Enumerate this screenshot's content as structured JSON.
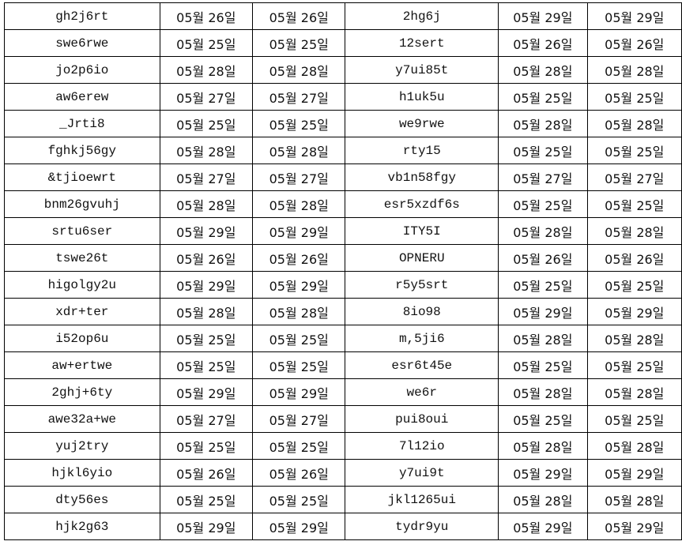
{
  "rows": [
    [
      "gh2j6rt",
      "05월 26일",
      "05월 26일",
      "2hg6j",
      "05월 29일",
      "05월 29일"
    ],
    [
      "swe6rwe",
      "05월 25일",
      "05월 25일",
      "12sert",
      "05월 26일",
      "05월 26일"
    ],
    [
      "jo2p6io",
      "05월 28일",
      "05월 28일",
      "y7ui85t",
      "05월 28일",
      "05월 28일"
    ],
    [
      "aw6erew",
      "05월 27일",
      "05월 27일",
      "h1uk5u",
      "05월 25일",
      "05월 25일"
    ],
    [
      "_Jrti8",
      "05월 25일",
      "05월 25일",
      "we9rwe",
      "05월 28일",
      "05월 28일"
    ],
    [
      "fghkj56gy",
      "05월 28일",
      "05월 28일",
      "rty15",
      "05월 25일",
      "05월 25일"
    ],
    [
      "&tjioewrt",
      "05월 27일",
      "05월 27일",
      "vb1n58fgy",
      "05월 27일",
      "05월 27일"
    ],
    [
      "bnm26gvuhj",
      "05월 28일",
      "05월 28일",
      "esr5xzdf6s",
      "05월 25일",
      "05월 25일"
    ],
    [
      "srtu6ser",
      "05월 29일",
      "05월 29일",
      "ITY5I",
      "05월 28일",
      "05월 28일"
    ],
    [
      "tswe26t",
      "05월 26일",
      "05월 26일",
      "OPNERU",
      "05월 26일",
      "05월 26일"
    ],
    [
      "higolgy2u",
      "05월 29일",
      "05월 29일",
      "r5y5srt",
      "05월 25일",
      "05월 25일"
    ],
    [
      "xdr+ter",
      "05월 28일",
      "05월 28일",
      "8io98",
      "05월 29일",
      "05월 29일"
    ],
    [
      "i52op6u",
      "05월 25일",
      "05월 25일",
      "m,5ji6",
      "05월 28일",
      "05월 28일"
    ],
    [
      "aw+ertwe",
      "05월 25일",
      "05월 25일",
      "esr6t45e",
      "05월 25일",
      "05월 25일"
    ],
    [
      "2ghj+6ty",
      "05월 29일",
      "05월 29일",
      "we6r",
      "05월 28일",
      "05월 28일"
    ],
    [
      "awe32a+we",
      "05월 27일",
      "05월 27일",
      "pui8oui",
      "05월 25일",
      "05월 25일"
    ],
    [
      "yuj2try",
      "05월 25일",
      "05월 25일",
      "7l12io",
      "05월 28일",
      "05월 28일"
    ],
    [
      "hjkl6yio",
      "05월 26일",
      "05월 26일",
      "y7ui9t",
      "05월 29일",
      "05월 29일"
    ],
    [
      "dty56es",
      "05월 25일",
      "05월 25일",
      "jkl1265ui",
      "05월 28일",
      "05월 28일"
    ],
    [
      "hjk2g63",
      "05월 29일",
      "05월 29일",
      "tydr9yu",
      "05월 29일",
      "05월 29일"
    ]
  ]
}
